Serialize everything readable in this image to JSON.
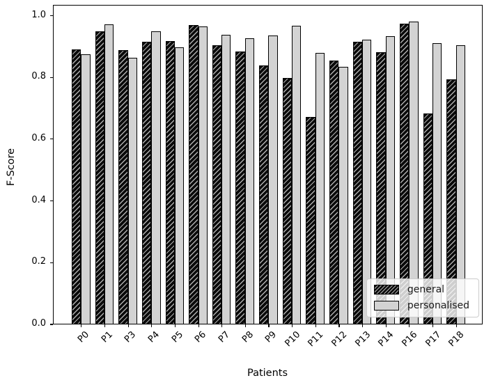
{
  "chart_data": {
    "type": "bar",
    "title": "",
    "xlabel": "Patients",
    "ylabel": "F-Score",
    "categories": [
      "P0",
      "P1",
      "P3",
      "P4",
      "P5",
      "P6",
      "P7",
      "P8",
      "P9",
      "P10",
      "P11",
      "P12",
      "P13",
      "P14",
      "P16",
      "P17",
      "P18"
    ],
    "series": [
      {
        "name": "general",
        "style": "black-hatched",
        "values": [
          0.893,
          0.952,
          0.89,
          0.917,
          0.92,
          0.971,
          0.906,
          0.885,
          0.84,
          0.8,
          0.672,
          0.855,
          0.918,
          0.883,
          0.977,
          0.684,
          0.796
        ]
      },
      {
        "name": "personalised",
        "style": "lightgray",
        "values": [
          0.877,
          0.973,
          0.865,
          0.952,
          0.9,
          0.967,
          0.941,
          0.929,
          0.938,
          0.97,
          0.88,
          0.835,
          0.925,
          0.936,
          0.982,
          0.913,
          0.907
        ]
      }
    ],
    "ylim": [
      0,
      1.035
    ],
    "yticks": [
      0.0,
      0.2,
      0.4,
      0.6,
      0.8,
      1.0
    ],
    "grid": false,
    "legend": {
      "position": "lower right"
    },
    "colors": {
      "general_fill": "#0a0a0a",
      "general_hatch": "#ffffff",
      "personalised_fill": "#d3d3d3",
      "edge": "#000000",
      "legend_border": "#cccccc"
    }
  }
}
